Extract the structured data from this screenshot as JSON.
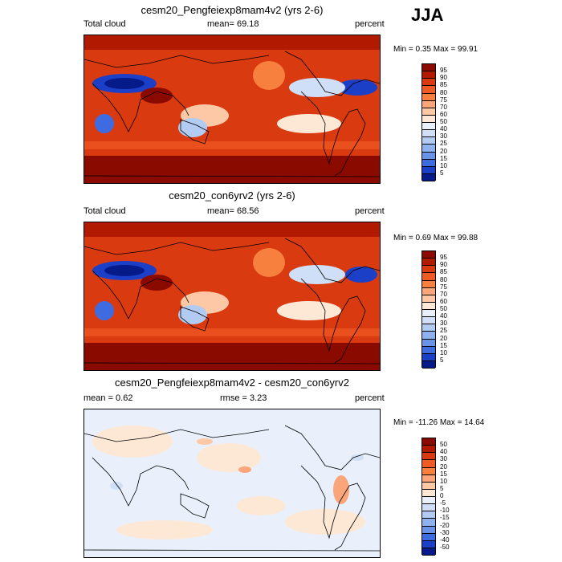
{
  "season": "JJA",
  "panels": [
    {
      "title": "cesm20_Pengfeiexp8mam4v2 (yrs 2-6)",
      "left": "Total cloud",
      "center": "mean=  69.18",
      "right": "percent",
      "minmax": "Min =   0.35 Max =  99.91",
      "type": "abs"
    },
    {
      "title": "cesm20_con6yrv2 (yrs 2-6)",
      "left": "Total cloud",
      "center": "mean=  68.56",
      "right": "percent",
      "minmax": "Min =   0.69 Max =  99.88",
      "type": "abs"
    },
    {
      "title": "cesm20_Pengfeiexp8mam4v2 - cesm20_con6yrv2",
      "left": "mean =   0.62",
      "center": "rmse =   3.23",
      "right": "percent",
      "minmax": "Min = -11.26 Max =  14.64",
      "type": "diff"
    }
  ],
  "colorbar_abs": {
    "labels": [
      "95",
      "90",
      "85",
      "80",
      "75",
      "70",
      "60",
      "50",
      "40",
      "30",
      "25",
      "20",
      "15",
      "10",
      "5"
    ],
    "colors": [
      "#8b0a00",
      "#b21a00",
      "#d93a10",
      "#ef5a25",
      "#f7803f",
      "#fba57a",
      "#fcc8a6",
      "#fde8d6",
      "#e9f0fb",
      "#cfdff7",
      "#b2cbf2",
      "#8fb1ee",
      "#6a93e8",
      "#3f6be0",
      "#1c3fc8",
      "#071a8a"
    ]
  },
  "colorbar_diff": {
    "labels": [
      "50",
      "40",
      "30",
      "20",
      "15",
      "10",
      "5",
      "0",
      "-5",
      "-10",
      "-15",
      "-20",
      "-30",
      "-40",
      "-50"
    ],
    "colors": [
      "#8b0a00",
      "#b21a00",
      "#d93a10",
      "#ef5a25",
      "#f7803f",
      "#fba57a",
      "#fcc8a6",
      "#fde8d6",
      "#e9f0fb",
      "#cfdff7",
      "#b2cbf2",
      "#8fb1ee",
      "#6a93e8",
      "#3f6be0",
      "#1c3fc8",
      "#071a8a"
    ]
  }
}
